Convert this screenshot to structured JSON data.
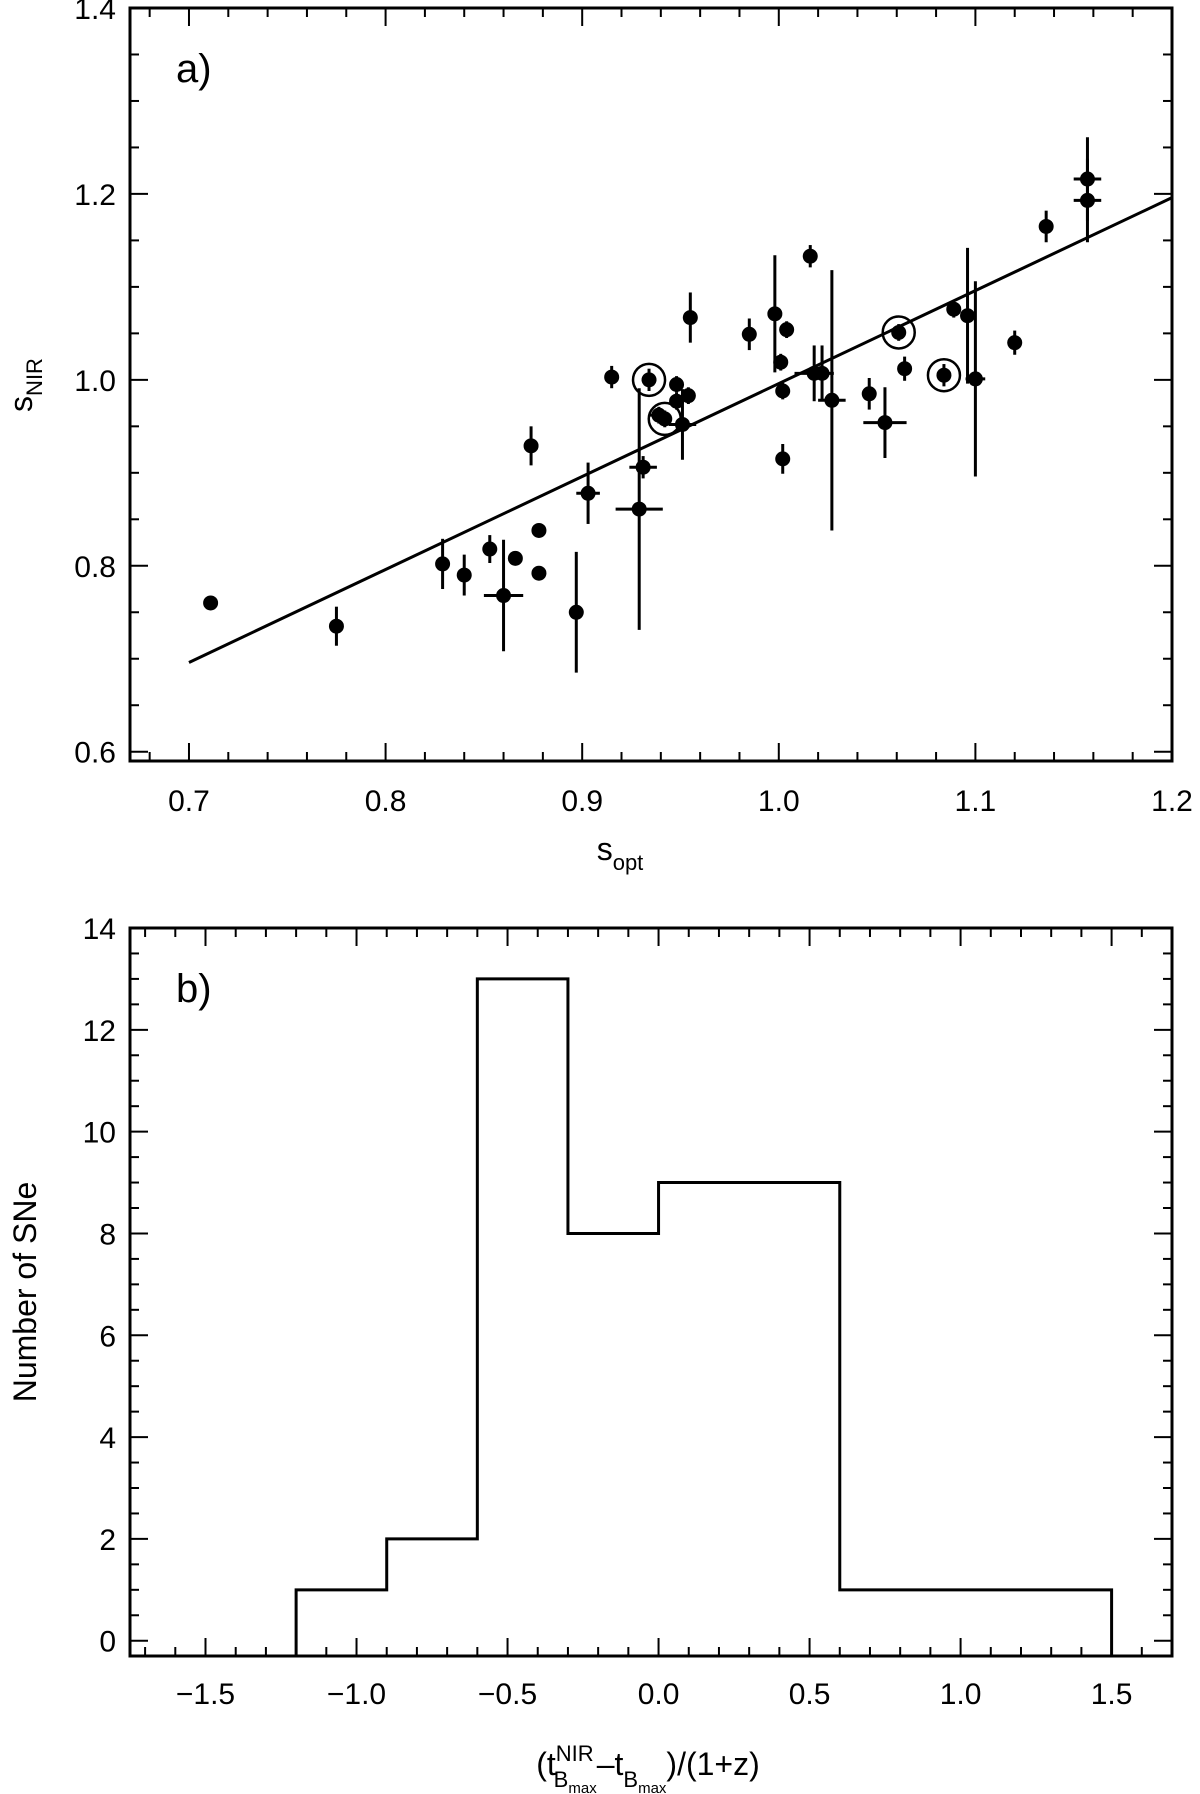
{
  "chart_data": [
    {
      "type": "scatter",
      "panel_label": "a)",
      "xlabel": {
        "main": "s",
        "sub": "opt"
      },
      "ylabel": {
        "main": "s",
        "sub": "NIR"
      },
      "xlim": [
        0.67,
        1.2
      ],
      "ylim": [
        0.59,
        1.4
      ],
      "xticks": [
        "0.7",
        "0.8",
        "0.9",
        "1.0",
        "1.1",
        "1.2"
      ],
      "yticks": [
        "0.6",
        "0.8",
        "1.0",
        "1.2",
        "1.4"
      ],
      "fit_line": {
        "x": [
          0.7,
          1.2
        ],
        "y": [
          0.696,
          1.196
        ]
      },
      "points": [
        {
          "x": 0.711,
          "y": 0.76,
          "yerr": 0.005,
          "xerr": 0
        },
        {
          "x": 0.775,
          "y": 0.735,
          "yerr": 0.021,
          "xerr": 0
        },
        {
          "x": 0.829,
          "y": 0.802,
          "yerr": 0.027,
          "xerr": 0
        },
        {
          "x": 0.84,
          "y": 0.79,
          "yerr": 0.022,
          "xerr": 0
        },
        {
          "x": 0.853,
          "y": 0.818,
          "yerr": 0.015,
          "xerr": 0
        },
        {
          "x": 0.86,
          "y": 0.768,
          "yerr": 0.06,
          "xerr": 0.01
        },
        {
          "x": 0.866,
          "y": 0.808,
          "yerr": 0.005,
          "xerr": 0
        },
        {
          "x": 0.874,
          "y": 0.929,
          "yerr": 0.021,
          "xerr": 0
        },
        {
          "x": 0.878,
          "y": 0.792,
          "yerr": 0.005,
          "xerr": 0
        },
        {
          "x": 0.878,
          "y": 0.838,
          "yerr": 0.005,
          "xerr": 0
        },
        {
          "x": 0.897,
          "y": 0.75,
          "yerr": 0.065,
          "xerr": 0
        },
        {
          "x": 0.903,
          "y": 0.878,
          "yerr": 0.033,
          "xerr": 0.006
        },
        {
          "x": 0.915,
          "y": 1.003,
          "yerr": 0.012,
          "xerr": 0
        },
        {
          "x": 0.929,
          "y": 0.861,
          "yerr": 0.13,
          "xerr": 0.012
        },
        {
          "x": 0.931,
          "y": 0.906,
          "yerr": 0.012,
          "xerr": 0.007
        },
        {
          "x": 0.934,
          "y": 1.0,
          "yerr": 0.012,
          "xerr": 0,
          "circled": true
        },
        {
          "x": 0.939,
          "y": 0.962,
          "yerr": 0.009,
          "xerr": 0.005
        },
        {
          "x": 0.942,
          "y": 0.958,
          "yerr": 0.009,
          "xerr": 0,
          "circled": true
        },
        {
          "x": 0.948,
          "y": 0.995,
          "yerr": 0.009,
          "xerr": 0
        },
        {
          "x": 0.948,
          "y": 0.977,
          "yerr": 0.009,
          "xerr": 0
        },
        {
          "x": 0.951,
          "y": 0.952,
          "yerr": 0.038,
          "xerr": 0.007
        },
        {
          "x": 0.954,
          "y": 0.983,
          "yerr": 0.009,
          "xerr": 0
        },
        {
          "x": 0.955,
          "y": 1.067,
          "yerr": 0.027,
          "xerr": 0
        },
        {
          "x": 0.985,
          "y": 1.049,
          "yerr": 0.017,
          "xerr": 0
        },
        {
          "x": 0.998,
          "y": 1.071,
          "yerr": 0.063,
          "xerr": 0
        },
        {
          "x": 1.001,
          "y": 1.019,
          "yerr": 0.009,
          "xerr": 0
        },
        {
          "x": 1.002,
          "y": 0.988,
          "yerr": 0.009,
          "xerr": 0
        },
        {
          "x": 1.002,
          "y": 0.915,
          "yerr": 0.016,
          "xerr": 0
        },
        {
          "x": 1.004,
          "y": 1.054,
          "yerr": 0.009,
          "xerr": 0
        },
        {
          "x": 1.016,
          "y": 1.133,
          "yerr": 0.012,
          "xerr": 0
        },
        {
          "x": 1.018,
          "y": 1.007,
          "yerr": 0.03,
          "xerr": 0.01
        },
        {
          "x": 1.022,
          "y": 1.007,
          "yerr": 0.03,
          "xerr": 0
        },
        {
          "x": 1.027,
          "y": 0.978,
          "yerr": 0.14,
          "xerr": 0.007
        },
        {
          "x": 1.046,
          "y": 0.985,
          "yerr": 0.017,
          "xerr": 0
        },
        {
          "x": 1.054,
          "y": 0.954,
          "yerr": 0.038,
          "xerr": 0.011
        },
        {
          "x": 1.061,
          "y": 1.051,
          "yerr": 0.009,
          "xerr": 0,
          "circled": true
        },
        {
          "x": 1.064,
          "y": 1.012,
          "yerr": 0.013,
          "xerr": 0
        },
        {
          "x": 1.084,
          "y": 1.005,
          "yerr": 0.012,
          "xerr": 0,
          "circled": true
        },
        {
          "x": 1.089,
          "y": 1.076,
          "yerr": 0.009,
          "xerr": 0
        },
        {
          "x": 1.096,
          "y": 1.069,
          "yerr": 0.073,
          "xerr": 0
        },
        {
          "x": 1.1,
          "y": 1.001,
          "yerr": 0.105,
          "xerr": 0.005
        },
        {
          "x": 1.12,
          "y": 1.04,
          "yerr": 0.013,
          "xerr": 0
        },
        {
          "x": 1.136,
          "y": 1.165,
          "yerr": 0.017,
          "xerr": 0
        },
        {
          "x": 1.157,
          "y": 1.216,
          "yerr": 0.045,
          "xerr": 0.007
        },
        {
          "x": 1.157,
          "y": 1.193,
          "yerr": 0.045,
          "xerr": 0.007
        }
      ]
    },
    {
      "type": "histogram",
      "panel_label": "b)",
      "ylabel": "Number of SNe",
      "xlabel": {
        "open": "(t",
        "sup": "NIR",
        "sub": "B",
        "subsub": "max",
        "mid": "–t",
        "sub2": "B",
        "subsub2": "max",
        "close": ")/(1+z)"
      },
      "xlim": [
        -1.75,
        1.7
      ],
      "ylim": [
        -0.3,
        14
      ],
      "xticks": [
        "−1.5",
        "−1.0",
        "−0.5",
        "0.0",
        "0.5",
        "1.0",
        "1.5"
      ],
      "yticks": [
        "0",
        "2",
        "4",
        "6",
        "8",
        "10",
        "12",
        "14"
      ],
      "bin_edges": [
        -1.2,
        -0.9,
        -0.6,
        -0.3,
        0.0,
        0.6,
        1.5
      ],
      "counts": [
        1,
        2,
        13,
        8,
        9,
        1
      ]
    }
  ]
}
